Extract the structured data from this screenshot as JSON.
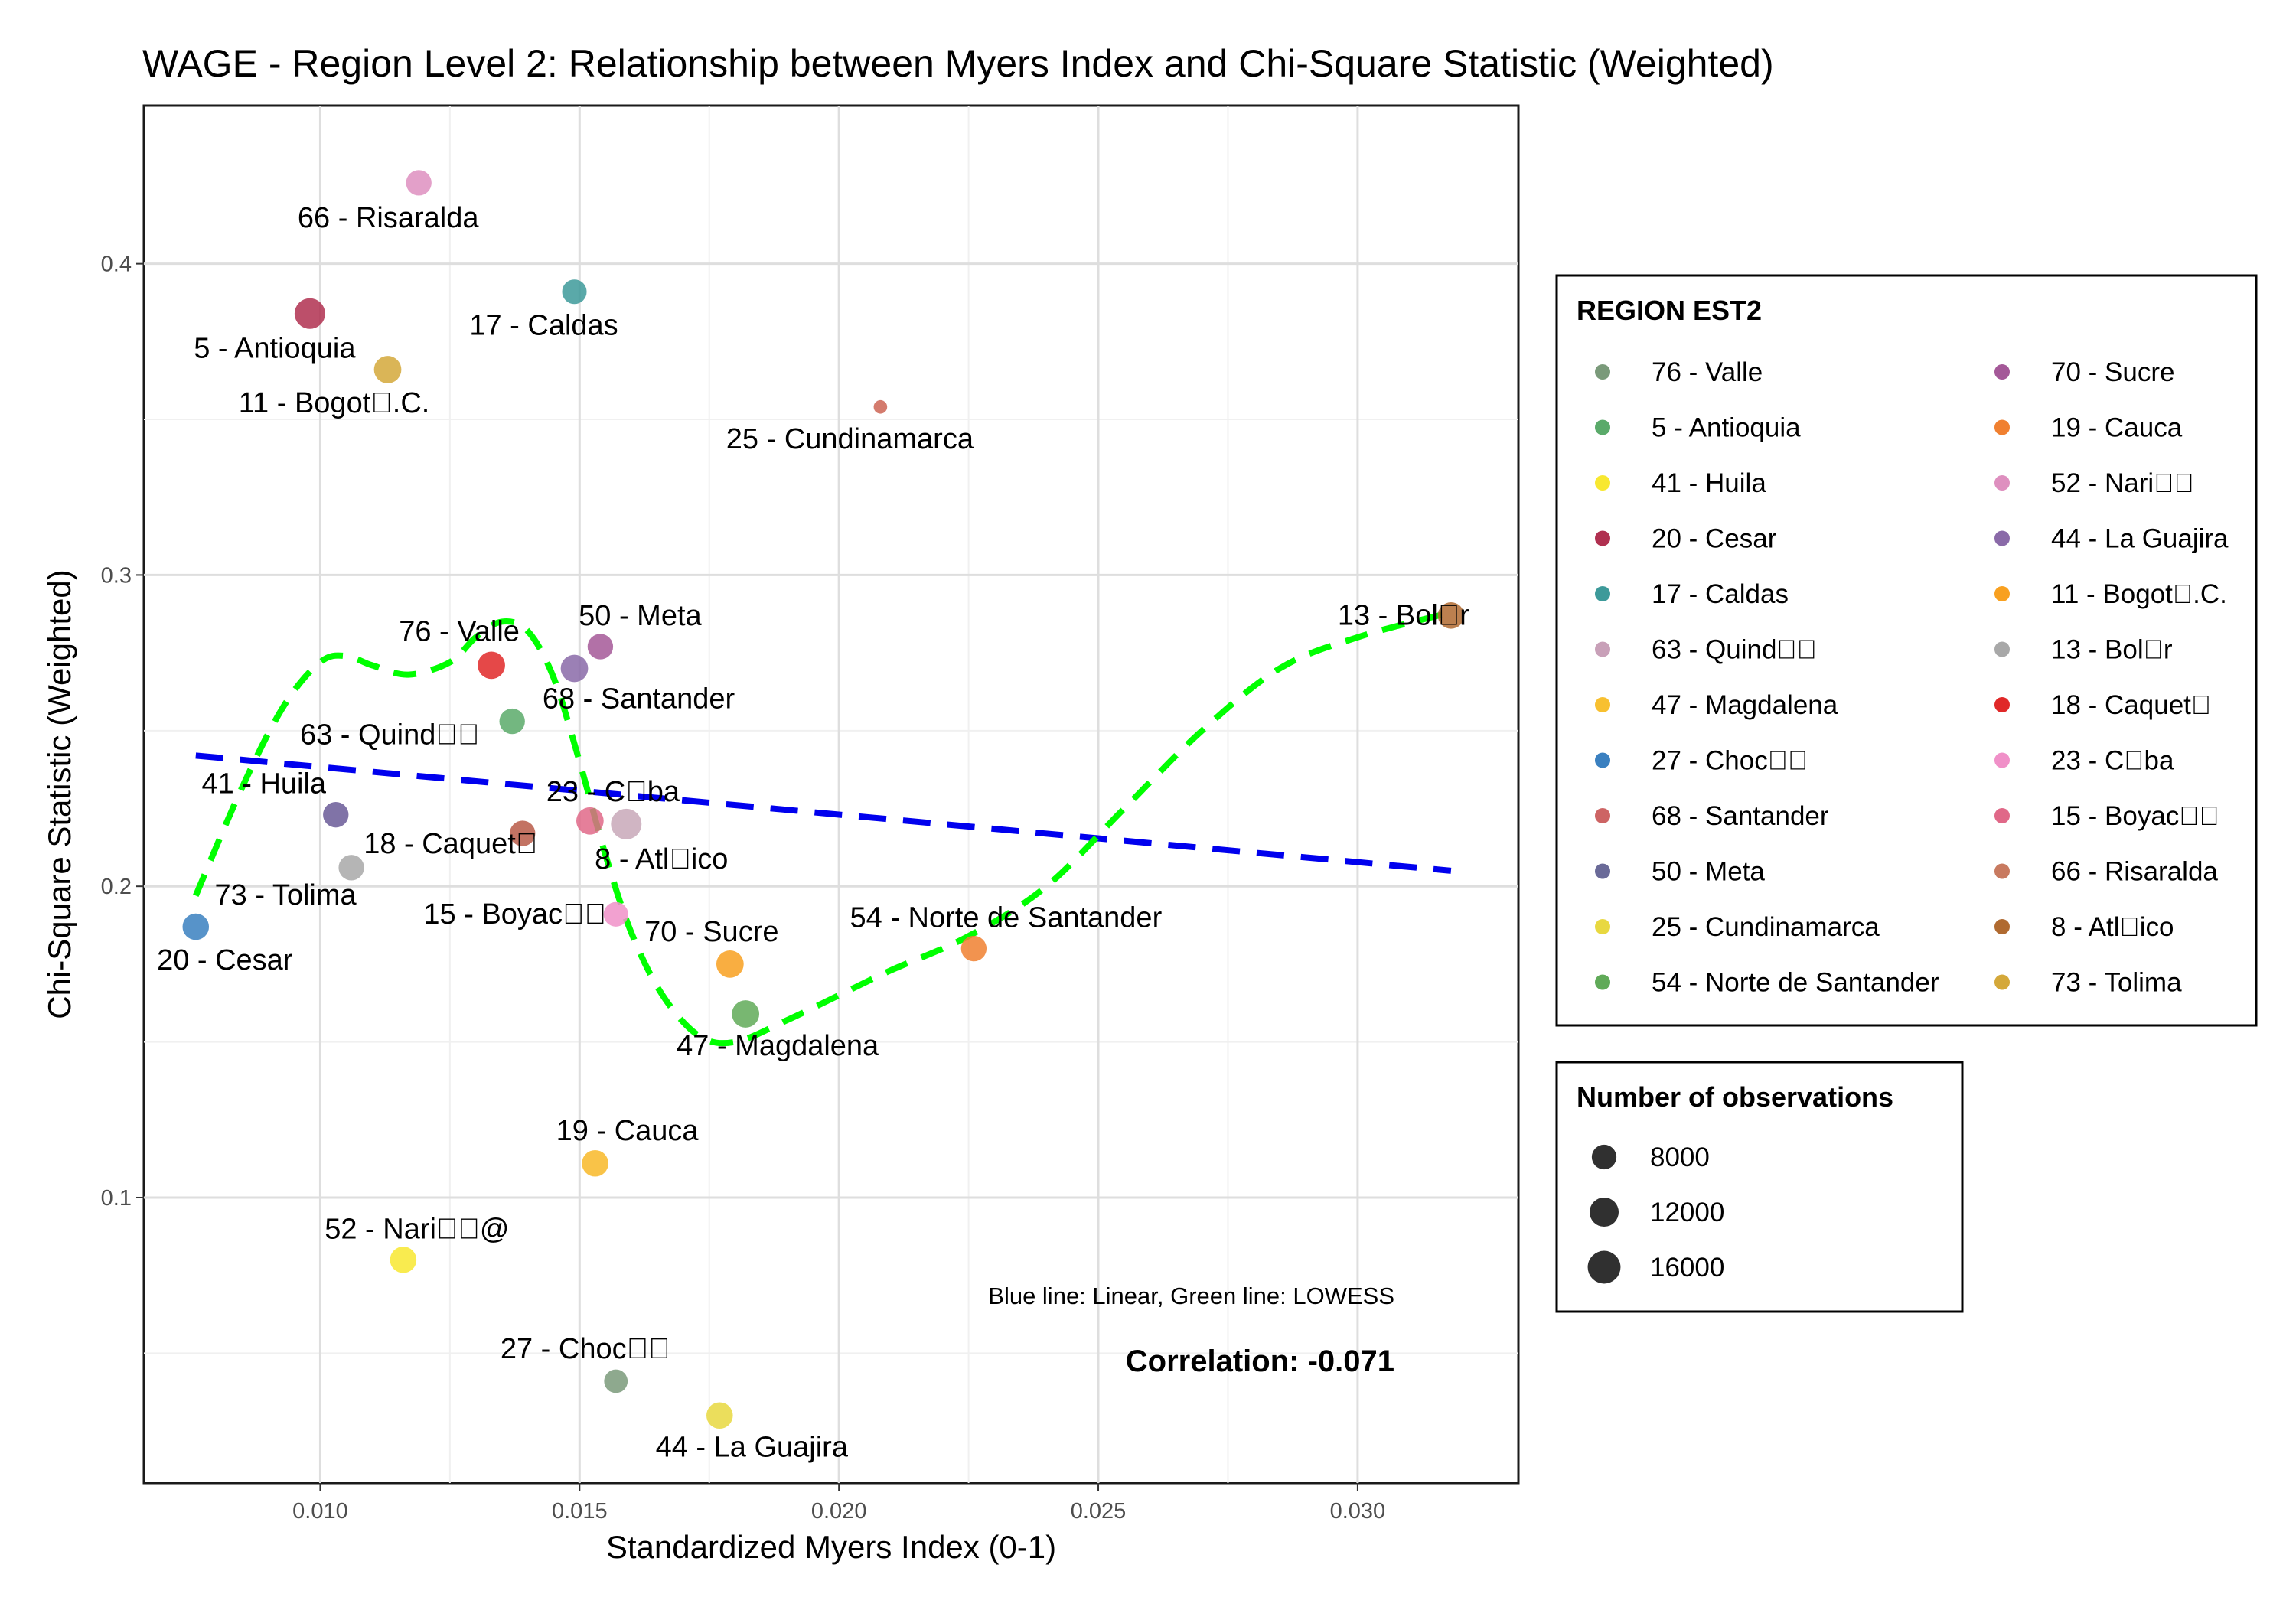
{
  "chart_data": {
    "type": "scatter",
    "title": "WAGE - Region Level 2: Relationship between Myers Index and Chi-Square Statistic (Weighted)",
    "xlabel": "Standardized Myers Index (0-1)",
    "ylabel": "Chi-Square Statistic (Weighted)",
    "xlim": [
      0.0066,
      0.0331
    ],
    "ylim": [
      0.0083,
      0.4508
    ],
    "x_ticks": [
      0.01,
      0.015,
      0.02,
      0.025,
      0.03
    ],
    "x_tick_labels": [
      "0.010",
      "0.015",
      "0.020",
      "0.025",
      "0.030"
    ],
    "y_ticks": [
      0.1,
      0.2,
      0.3,
      0.4
    ],
    "y_tick_labels": [
      "0.1",
      "0.2",
      "0.3",
      "0.4"
    ],
    "grid": true,
    "points": [
      {
        "label": "66 - Risaralda",
        "x": 0.0119,
        "y": 0.426,
        "size": 11000,
        "color": "#de8fbf"
      },
      {
        "label": "17 - Caldas",
        "x": 0.0149,
        "y": 0.391,
        "size": 10000,
        "color": "#3d9a9a"
      },
      {
        "label": "5 - Antioquia",
        "x": 0.0098,
        "y": 0.384,
        "size": 17000,
        "color": "#b03050"
      },
      {
        "label": "11 - Bogot\u0000.C.",
        "x": 0.0113,
        "y": 0.366,
        "size": 13000,
        "color": "#d4a83a"
      },
      {
        "label": "25 - Cundinamarca",
        "x": 0.0208,
        "y": 0.354,
        "size": 2000,
        "color": "#cd6454"
      },
      {
        "label": "13 - Bol\u0000r",
        "x": 0.0318,
        "y": 0.287,
        "size": 12000,
        "color": "#b06a30"
      },
      {
        "label": "76 - Valle",
        "x": 0.0133,
        "y": 0.271,
        "size": 13000,
        "color": "#e02828"
      },
      {
        "label": "50 - Meta",
        "x": 0.0154,
        "y": 0.277,
        "size": 11000,
        "color": "#a45898"
      },
      {
        "label": "68 - Santander",
        "x": 0.0149,
        "y": 0.27,
        "size": 13000,
        "color": "#8a6aa8"
      },
      {
        "label": "63 - Quind\u0000\u0000",
        "x": 0.0137,
        "y": 0.253,
        "size": 11000,
        "color": "#5aaa6a"
      },
      {
        "label": "23 - C\u0000ba",
        "x": 0.0152,
        "y": 0.221,
        "size": 13000,
        "color": "#e06888"
      },
      {
        "label": "8 - Atl\u0000ico",
        "x": 0.0159,
        "y": 0.22,
        "size": 17000,
        "color": "#c8a8b8"
      },
      {
        "label": "41 - Huila",
        "x": 0.0103,
        "y": 0.223,
        "size": 11000,
        "color": "#6a5a98"
      },
      {
        "label": "18 - Caquet\u0000",
        "x": 0.0139,
        "y": 0.217,
        "size": 11000,
        "color": "#b85a48"
      },
      {
        "label": "73 - Tolima",
        "x": 0.0106,
        "y": 0.206,
        "size": 11000,
        "color": "#a8a8a8"
      },
      {
        "label": "15 - Boyac\u0000\u0000",
        "x": 0.0157,
        "y": 0.191,
        "size": 10000,
        "color": "#f090c8"
      },
      {
        "label": "20 - Cesar",
        "x": 0.0076,
        "y": 0.187,
        "size": 12000,
        "color": "#3a80c0"
      },
      {
        "label": "70 - Sucre",
        "x": 0.0179,
        "y": 0.175,
        "size": 13000,
        "color": "#f8a020"
      },
      {
        "label": "54 - Norte de Santander",
        "x": 0.0226,
        "y": 0.18,
        "size": 11000,
        "color": "#f08030"
      },
      {
        "label": "47 - Magdalena",
        "x": 0.0182,
        "y": 0.159,
        "size": 13000,
        "color": "#60aa58"
      },
      {
        "label": "19 - Cauca",
        "x": 0.0153,
        "y": 0.111,
        "size": 12000,
        "color": "#f8b828"
      },
      {
        "label": "52 - Nari\u0000\u0000@",
        "x": 0.0116,
        "y": 0.08,
        "size": 12000,
        "color": "#f8e830"
      },
      {
        "label": "27 - Choc\u0000\u0000",
        "x": 0.0157,
        "y": 0.041,
        "size": 9000,
        "color": "#7a9a7a"
      },
      {
        "label": "44 - La Guajira",
        "x": 0.0177,
        "y": 0.03,
        "size": 12000,
        "color": "#e8d840"
      }
    ],
    "linear_fit": [
      [
        0.0076,
        0.242
      ],
      [
        0.0318,
        0.205
      ]
    ],
    "lowess": [
      [
        0.0076,
        0.197
      ],
      [
        0.0085,
        0.232
      ],
      [
        0.0093,
        0.258
      ],
      [
        0.01,
        0.272
      ],
      [
        0.0105,
        0.274
      ],
      [
        0.011,
        0.271
      ],
      [
        0.0117,
        0.268
      ],
      [
        0.0125,
        0.272
      ],
      [
        0.013,
        0.28
      ],
      [
        0.0135,
        0.285
      ],
      [
        0.014,
        0.282
      ],
      [
        0.0145,
        0.267
      ],
      [
        0.015,
        0.24
      ],
      [
        0.0155,
        0.21
      ],
      [
        0.016,
        0.185
      ],
      [
        0.0166,
        0.165
      ],
      [
        0.0173,
        0.152
      ],
      [
        0.018,
        0.15
      ],
      [
        0.019,
        0.157
      ],
      [
        0.02,
        0.165
      ],
      [
        0.021,
        0.173
      ],
      [
        0.0225,
        0.184
      ],
      [
        0.024,
        0.2
      ],
      [
        0.0255,
        0.225
      ],
      [
        0.027,
        0.25
      ],
      [
        0.0285,
        0.27
      ],
      [
        0.03,
        0.28
      ],
      [
        0.0318,
        0.288
      ]
    ],
    "annotation_lines": "Blue line: Linear, Green line: LOWESS",
    "correlation_text": "Correlation: -0.071",
    "legend_region": {
      "title": "REGION EST2",
      "placement": "right",
      "entries": [
        {
          "label": "76 - Valle",
          "color": "#7a9a7a"
        },
        {
          "label": "5 - Antioquia",
          "color": "#5aaa6a"
        },
        {
          "label": "41 - Huila",
          "color": "#f8e830"
        },
        {
          "label": "20 - Cesar",
          "color": "#b03050"
        },
        {
          "label": "17 - Caldas",
          "color": "#3d9a9a"
        },
        {
          "label": "63 - Quind\u0000\u0000",
          "color": "#c8a0b8"
        },
        {
          "label": "47 - Magdalena",
          "color": "#f8c030"
        },
        {
          "label": "27 - Choc\u0000\u0000",
          "color": "#3a80c0"
        },
        {
          "label": "68 - Santander",
          "color": "#cd6464"
        },
        {
          "label": "50 - Meta",
          "color": "#6a6a98"
        },
        {
          "label": "25 - Cundinamarca",
          "color": "#e8d840"
        },
        {
          "label": "54 - Norte de Santander",
          "color": "#60aa58"
        },
        {
          "label": "70 - Sucre",
          "color": "#a45898"
        },
        {
          "label": "19 - Cauca",
          "color": "#f08030"
        },
        {
          "label": "52 - Nari\u0000\u0000",
          "color": "#de8fbf"
        },
        {
          "label": "44 - La Guajira",
          "color": "#8a6aa8"
        },
        {
          "label": "11 - Bogot\u0000.C.",
          "color": "#f8a020"
        },
        {
          "label": "13 - Bol\u0000r",
          "color": "#a8a8a8"
        },
        {
          "label": "18 - Caquet\u0000",
          "color": "#e02828"
        },
        {
          "label": "23 - C\u0000ba",
          "color": "#f090c8"
        },
        {
          "label": "15 - Boyac\u0000\u0000",
          "color": "#e06888"
        },
        {
          "label": "66 - Risaralda",
          "color": "#c87a60"
        },
        {
          "label": "8 - Atl\u0000ico",
          "color": "#b06a30"
        },
        {
          "label": "73 - Tolima",
          "color": "#d4a83a"
        }
      ]
    },
    "legend_size": {
      "title": "Number of observations",
      "entries": [
        8000,
        12000,
        16000
      ]
    },
    "linear_color": "#0000ee",
    "lowess_color": "#00ff00"
  }
}
